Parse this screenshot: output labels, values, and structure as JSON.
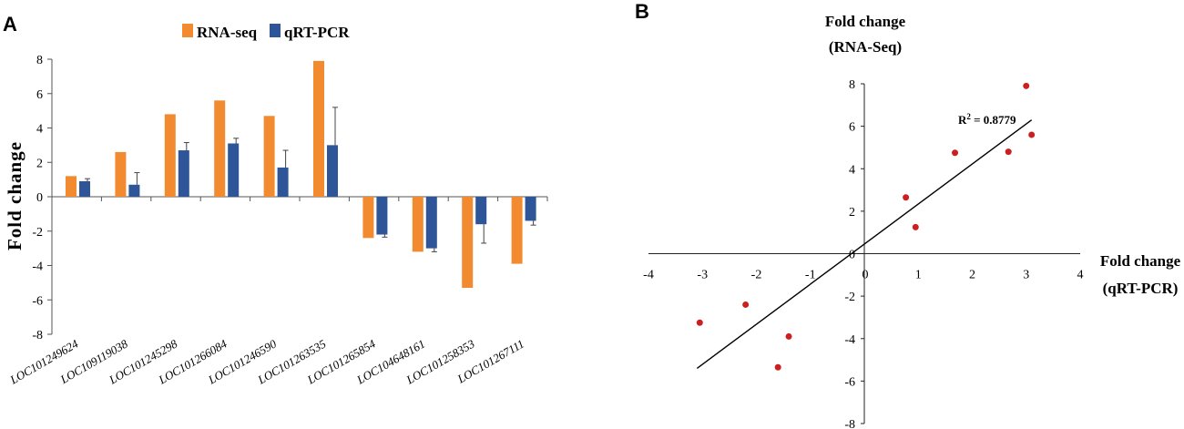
{
  "chart_data": [
    {
      "panel": "A",
      "type": "bar",
      "ylabel": "Fold change",
      "ylim": [
        -8,
        8
      ],
      "yticks": [
        -8,
        -6,
        -4,
        -2,
        0,
        2,
        4,
        6,
        8
      ],
      "legend": [
        "RNA-seq",
        "qRT-PCR"
      ],
      "categories": [
        "LOC101249624",
        "LOC109119038",
        "LOC101245298",
        "LOC101266084",
        "LOC101246590",
        "LOC101263535",
        "LOC101265854",
        "LOC104648161",
        "LOC101258353",
        "LOC101267111"
      ],
      "series": [
        {
          "name": "RNA-seq",
          "color": "#f28a30",
          "values": [
            1.2,
            2.6,
            4.8,
            5.6,
            4.7,
            7.9,
            -2.4,
            -3.2,
            -5.3,
            -3.9
          ],
          "errors": [
            0,
            0,
            0,
            0,
            0,
            0,
            0,
            0,
            0,
            0
          ]
        },
        {
          "name": "qRT-PCR",
          "color": "#2e5597",
          "values": [
            0.9,
            0.7,
            2.7,
            3.1,
            1.7,
            3.0,
            -2.2,
            -3.0,
            -1.6,
            -1.4
          ],
          "errors": [
            0.15,
            0.7,
            0.45,
            0.3,
            1.0,
            2.2,
            0.15,
            0.2,
            1.1,
            0.25
          ]
        }
      ]
    },
    {
      "panel": "B",
      "type": "scatter",
      "ylabel_line1": "Fold change",
      "ylabel_line2": "(RNA-Seq)",
      "xlabel_line1": "Fold change",
      "xlabel_line2": "(qRT-PCR)",
      "xlim": [
        -4,
        4
      ],
      "ylim": [
        -8,
        8
      ],
      "xticks": [
        -4,
        -3,
        -2,
        -1,
        0,
        1,
        2,
        3,
        4
      ],
      "yticks": [
        -8,
        -6,
        -4,
        -2,
        0,
        2,
        4,
        6,
        8
      ],
      "point_color": "#cc2020",
      "points": [
        {
          "x": 0.77,
          "y": 2.65
        },
        {
          "x": 0.95,
          "y": 1.25
        },
        {
          "x": 1.68,
          "y": 4.75
        },
        {
          "x": 2.67,
          "y": 4.8
        },
        {
          "x": 3.0,
          "y": 7.9
        },
        {
          "x": 3.1,
          "y": 5.6
        },
        {
          "x": -1.4,
          "y": -3.9
        },
        {
          "x": -1.6,
          "y": -5.35
        },
        {
          "x": -2.2,
          "y": -2.4
        },
        {
          "x": -3.05,
          "y": -3.25
        }
      ],
      "trendline": {
        "x1": -3.1,
        "y1": -5.4,
        "x2": 3.1,
        "y2": 6.3
      },
      "r2_label": "R",
      "r2_sup": "2",
      "r2_value": " = 0.8779"
    }
  ]
}
